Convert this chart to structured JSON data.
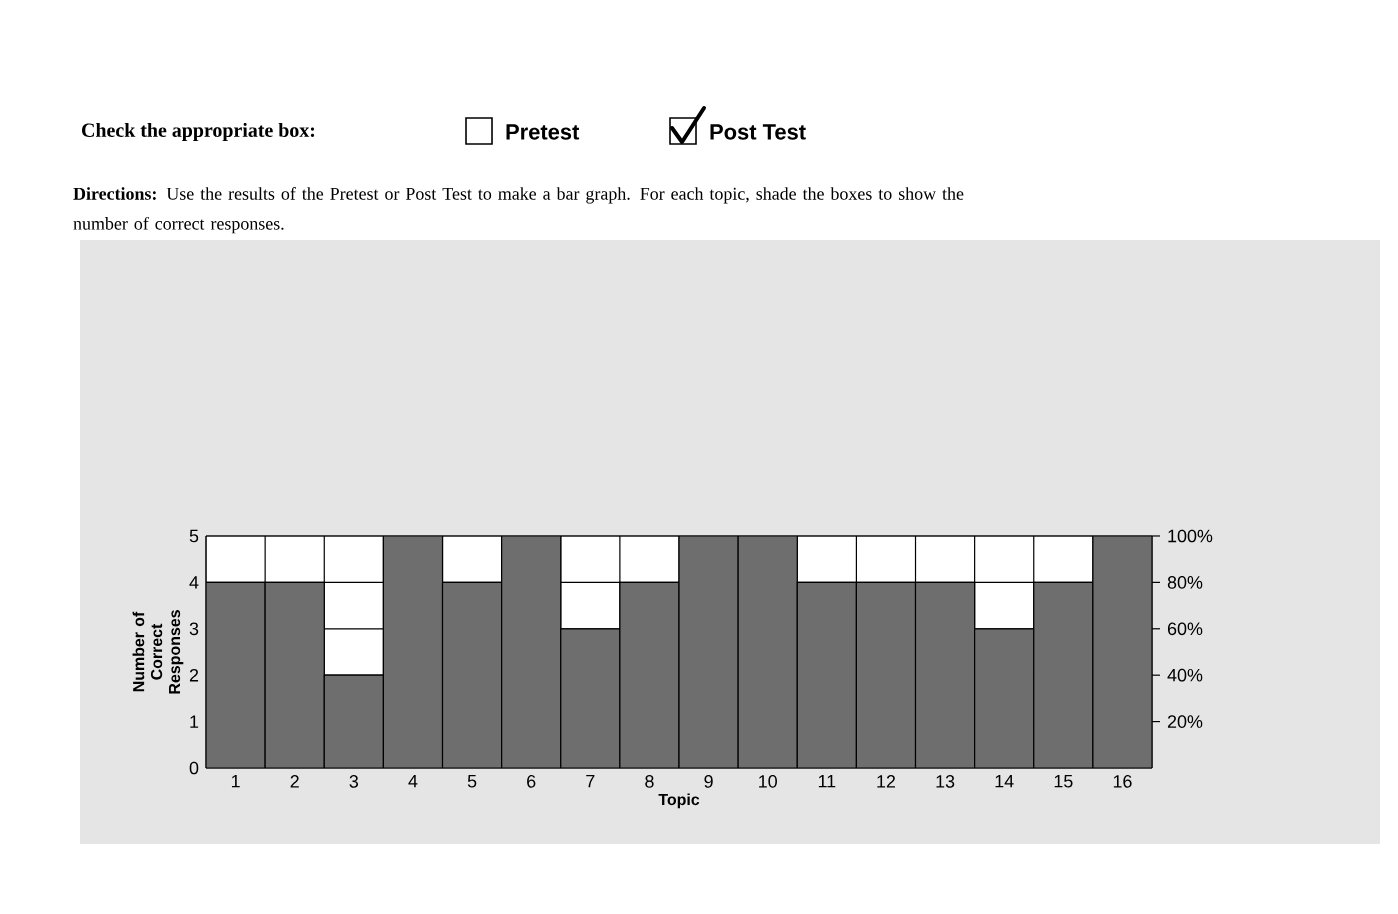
{
  "chart_data": {
    "type": "bar",
    "categories": [
      "1",
      "2",
      "3",
      "4",
      "5",
      "6",
      "7",
      "8",
      "9",
      "10",
      "11",
      "12",
      "13",
      "14",
      "15",
      "16"
    ],
    "values": [
      4,
      4,
      2,
      5,
      4,
      5,
      3,
      4,
      5,
      5,
      4,
      4,
      4,
      3,
      4,
      5
    ],
    "color": "#6e6e6e",
    "xlabel": "Topic",
    "ylabel": "Number of Correct Responses",
    "ylim": [
      0,
      5
    ],
    "yticks": [
      0,
      1,
      2,
      3,
      4,
      5
    ],
    "y2lim": [
      0,
      100
    ],
    "y2ticks": [
      {
        "value": 20,
        "label": "20%"
      },
      {
        "value": 40,
        "label": "40%"
      },
      {
        "value": 60,
        "label": "60%"
      },
      {
        "value": 80,
        "label": "80%"
      },
      {
        "value": 100,
        "label": "100%"
      }
    ],
    "grid": true,
    "annotations": [
      "Check the appropriate box:",
      "Pretest",
      "Post Test",
      "**Directions:** Use the results of the Pretest or Post Test to make a bar graph. For each topic, shade the boxes to show the number of correct responses."
    ]
  }
}
